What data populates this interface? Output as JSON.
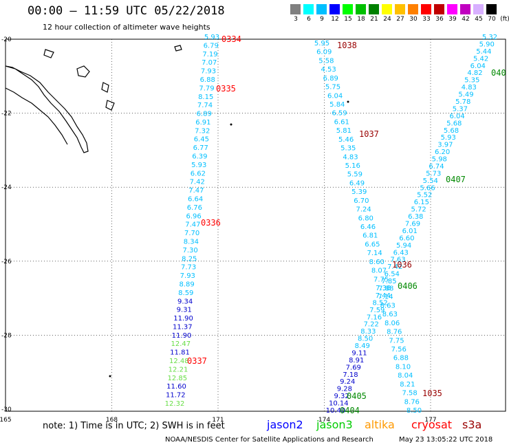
{
  "header": {
    "title": "00:00 – 11:59 UTC 05/22/2018",
    "subtitle": "12 hour collection of altimeter wave heights"
  },
  "legend": {
    "unit": "(ft)",
    "items": [
      {
        "label": "3",
        "color": "#808080"
      },
      {
        "label": "6",
        "color": "#00ffff"
      },
      {
        "label": "9",
        "color": "#00bfff"
      },
      {
        "label": "12",
        "color": "#0000ff"
      },
      {
        "label": "15",
        "color": "#00ff00"
      },
      {
        "label": "18",
        "color": "#00c000"
      },
      {
        "label": "21",
        "color": "#008000"
      },
      {
        "label": "24",
        "color": "#ffff00"
      },
      {
        "label": "27",
        "color": "#ffc000"
      },
      {
        "label": "30",
        "color": "#ff8000"
      },
      {
        "label": "33",
        "color": "#ff0000"
      },
      {
        "label": "36",
        "color": "#c00000"
      },
      {
        "label": "39",
        "color": "#ff00ff"
      },
      {
        "label": "42",
        "color": "#c000c0"
      },
      {
        "label": "45",
        "color": "#d8b0ff"
      },
      {
        "label": "70",
        "color": "#000000"
      }
    ]
  },
  "map": {
    "x_ticks": [
      "165",
      "168",
      "171",
      "174",
      "177"
    ],
    "y_ticks": [
      "-20",
      "-22",
      "-24",
      "-26",
      "-28",
      "-30"
    ],
    "colors": {
      "cyan": "#00bfff",
      "blue": "#0000cc",
      "green": "#66dd44",
      "red": "#ff0000",
      "darkred": "#990000",
      "darkgreen": "#008800"
    },
    "tracks": [
      {
        "labels": [
          {
            "t": "5.93",
            "c": "cyan"
          },
          {
            "t": "6.79",
            "c": "cyan"
          },
          {
            "t": "7.19",
            "c": "cyan"
          },
          {
            "t": "7.07",
            "c": "cyan"
          },
          {
            "t": "7.93",
            "c": "cyan"
          },
          {
            "t": "6.88",
            "c": "cyan"
          },
          {
            "t": "7.79",
            "c": "cyan"
          },
          {
            "t": "8.15",
            "c": "cyan"
          },
          {
            "t": "7.74",
            "c": "cyan"
          },
          {
            "t": "6.89",
            "c": "cyan"
          },
          {
            "t": "6.91",
            "c": "cyan"
          },
          {
            "t": "7.32",
            "c": "cyan"
          },
          {
            "t": "6.45",
            "c": "cyan"
          },
          {
            "t": "6.77",
            "c": "cyan"
          },
          {
            "t": "6.39",
            "c": "cyan"
          },
          {
            "t": "5.93",
            "c": "cyan"
          },
          {
            "t": "6.62",
            "c": "cyan"
          },
          {
            "t": "7.42",
            "c": "cyan"
          },
          {
            "t": "7.47",
            "c": "cyan"
          },
          {
            "t": "6.64",
            "c": "cyan"
          },
          {
            "t": "6.76",
            "c": "cyan"
          },
          {
            "t": "6.96",
            "c": "cyan"
          },
          {
            "t": "7.47",
            "c": "cyan"
          },
          {
            "t": "7.70",
            "c": "cyan"
          },
          {
            "t": "8.34",
            "c": "cyan"
          },
          {
            "t": "7.30",
            "c": "cyan"
          },
          {
            "t": "8.25",
            "c": "cyan"
          },
          {
            "t": "7.73",
            "c": "cyan"
          },
          {
            "t": "7.93",
            "c": "cyan"
          },
          {
            "t": "8.89",
            "c": "cyan"
          },
          {
            "t": "8.59",
            "c": "cyan"
          },
          {
            "t": "9.34",
            "c": "blue"
          },
          {
            "t": "9.31",
            "c": "blue"
          },
          {
            "t": "11.90",
            "c": "blue"
          },
          {
            "t": "11.37",
            "c": "blue"
          },
          {
            "t": "11.90",
            "c": "blue"
          },
          {
            "t": "12.47",
            "c": "green"
          },
          {
            "t": "11.81",
            "c": "blue"
          },
          {
            "t": "12.48",
            "c": "green"
          },
          {
            "t": "12.21",
            "c": "green"
          },
          {
            "t": "12.85",
            "c": "green"
          },
          {
            "t": "11.60",
            "c": "blue"
          },
          {
            "t": "11.72",
            "c": "blue"
          },
          {
            "t": "12.32",
            "c": "green"
          }
        ]
      },
      {
        "labels": [
          {
            "t": "5.95",
            "c": "cyan"
          },
          {
            "t": "6.09",
            "c": "cyan"
          },
          {
            "t": "5.58",
            "c": "cyan"
          },
          {
            "t": "4.53",
            "c": "cyan"
          },
          {
            "t": "6.89",
            "c": "cyan"
          },
          {
            "t": "5.75",
            "c": "cyan"
          },
          {
            "t": "6.04",
            "c": "cyan"
          },
          {
            "t": "5.84",
            "c": "cyan"
          },
          {
            "t": "6.59",
            "c": "cyan"
          },
          {
            "t": "6.61",
            "c": "cyan"
          },
          {
            "t": "5.81",
            "c": "cyan"
          },
          {
            "t": "5.46",
            "c": "cyan"
          },
          {
            "t": "5.35",
            "c": "cyan"
          },
          {
            "t": "4.83",
            "c": "cyan"
          },
          {
            "t": "5.16",
            "c": "cyan"
          },
          {
            "t": "5.59",
            "c": "cyan"
          },
          {
            "t": "6.49",
            "c": "cyan"
          },
          {
            "t": "5.39",
            "c": "cyan"
          },
          {
            "t": "6.70",
            "c": "cyan"
          },
          {
            "t": "7.24",
            "c": "cyan"
          },
          {
            "t": "6.80",
            "c": "cyan"
          },
          {
            "t": "6.46",
            "c": "cyan"
          },
          {
            "t": "6.81",
            "c": "cyan"
          },
          {
            "t": "6.65",
            "c": "cyan"
          },
          {
            "t": "7.14",
            "c": "cyan"
          },
          {
            "t": "8.60",
            "c": "cyan"
          },
          {
            "t": "8.07",
            "c": "cyan"
          },
          {
            "t": "7.75",
            "c": "cyan"
          },
          {
            "t": "7.38",
            "c": "cyan"
          },
          {
            "t": "7.14",
            "c": "cyan"
          },
          {
            "t": "8.63",
            "c": "cyan"
          },
          {
            "t": "8.63",
            "c": "cyan"
          },
          {
            "t": "8.06",
            "c": "cyan"
          },
          {
            "t": "8.76",
            "c": "cyan"
          },
          {
            "t": "7.75",
            "c": "cyan"
          },
          {
            "t": "7.56",
            "c": "cyan"
          },
          {
            "t": "6.88",
            "c": "cyan"
          },
          {
            "t": "8.10",
            "c": "cyan"
          },
          {
            "t": "8.04",
            "c": "cyan"
          },
          {
            "t": "8.21",
            "c": "cyan"
          },
          {
            "t": "7.58",
            "c": "cyan"
          },
          {
            "t": "8.76",
            "c": "cyan"
          },
          {
            "t": "8.50",
            "c": "cyan"
          }
        ]
      },
      {
        "labels": [
          {
            "t": "5.32",
            "c": "cyan"
          },
          {
            "t": "5.90",
            "c": "cyan"
          },
          {
            "t": "5.44",
            "c": "cyan"
          },
          {
            "t": "5.42",
            "c": "cyan"
          },
          {
            "t": "6.04",
            "c": "cyan"
          },
          {
            "t": "4.82",
            "c": "cyan"
          },
          {
            "t": "5.35",
            "c": "cyan"
          },
          {
            "t": "4.83",
            "c": "cyan"
          },
          {
            "t": "5.49",
            "c": "cyan"
          },
          {
            "t": "5.78",
            "c": "cyan"
          },
          {
            "t": "5.37",
            "c": "cyan"
          },
          {
            "t": "6.04",
            "c": "cyan"
          },
          {
            "t": "5.68",
            "c": "cyan"
          },
          {
            "t": "5.68",
            "c": "cyan"
          },
          {
            "t": "5.93",
            "c": "cyan"
          },
          {
            "t": "3.97",
            "c": "cyan"
          },
          {
            "t": "6.20",
            "c": "cyan"
          },
          {
            "t": "5.98",
            "c": "cyan"
          },
          {
            "t": "6.74",
            "c": "cyan"
          },
          {
            "t": "5.73",
            "c": "cyan"
          },
          {
            "t": "5.54",
            "c": "cyan"
          },
          {
            "t": "5.66",
            "c": "cyan"
          },
          {
            "t": "5.52",
            "c": "cyan"
          },
          {
            "t": "6.15",
            "c": "cyan"
          },
          {
            "t": "5.72",
            "c": "cyan"
          },
          {
            "t": "6.38",
            "c": "cyan"
          },
          {
            "t": "7.69",
            "c": "cyan"
          },
          {
            "t": "6.01",
            "c": "cyan"
          },
          {
            "t": "6.60",
            "c": "cyan"
          },
          {
            "t": "5.94",
            "c": "cyan"
          },
          {
            "t": "6.43",
            "c": "cyan"
          },
          {
            "t": "7.63",
            "c": "cyan"
          },
          {
            "t": "7.42",
            "c": "cyan"
          },
          {
            "t": "6.54",
            "c": "cyan"
          },
          {
            "t": "7.85",
            "c": "cyan"
          },
          {
            "t": "7.88",
            "c": "cyan"
          },
          {
            "t": "7.44",
            "c": "cyan"
          },
          {
            "t": "8.52",
            "c": "cyan"
          },
          {
            "t": "7.59",
            "c": "cyan"
          },
          {
            "t": "7.16",
            "c": "cyan"
          },
          {
            "t": "7.22",
            "c": "cyan"
          },
          {
            "t": "8.33",
            "c": "cyan"
          },
          {
            "t": "8.50",
            "c": "cyan"
          },
          {
            "t": "8.49",
            "c": "cyan"
          },
          {
            "t": "9.11",
            "c": "blue"
          },
          {
            "t": "8.91",
            "c": "blue"
          },
          {
            "t": "7.69",
            "c": "blue"
          },
          {
            "t": "7.18",
            "c": "blue"
          },
          {
            "t": "9.24",
            "c": "blue"
          },
          {
            "t": "9.28",
            "c": "blue"
          },
          {
            "t": "9.32",
            "c": "blue"
          },
          {
            "t": "10.14",
            "c": "blue"
          },
          {
            "t": "10.40",
            "c": "blue"
          }
        ]
      }
    ],
    "time_labels": [
      {
        "t": "0334",
        "c": "red"
      },
      {
        "t": "0335",
        "c": "red"
      },
      {
        "t": "0336",
        "c": "red"
      },
      {
        "t": "0337",
        "c": "red"
      },
      {
        "t": "1038",
        "c": "darkred"
      },
      {
        "t": "1037",
        "c": "darkred"
      },
      {
        "t": "1036",
        "c": "darkred"
      },
      {
        "t": "1035",
        "c": "darkred"
      },
      {
        "t": "040",
        "c": "darkgreen"
      },
      {
        "t": "0407",
        "c": "darkgreen"
      },
      {
        "t": "0406",
        "c": "darkgreen"
      },
      {
        "t": "0405",
        "c": "darkgreen"
      },
      {
        "t": "0404",
        "c": "darkgreen"
      }
    ]
  },
  "footer": {
    "note": "note: 1) Time is in UTC; 2) SWH is in feet",
    "satellites": [
      {
        "name": "jason2",
        "color": "#0000ff"
      },
      {
        "name": "jason3",
        "color": "#00cc00"
      },
      {
        "name": "altika",
        "color": "#ff9900"
      },
      {
        "name": "cryosat",
        "color": "#ff0000"
      },
      {
        "name": "s3a",
        "color": "#990000"
      }
    ],
    "credit": "NOAA/NESDIS Center for Satellite Applications and Research",
    "timestamp": "May 23 13:05:22 UTC 2018"
  }
}
